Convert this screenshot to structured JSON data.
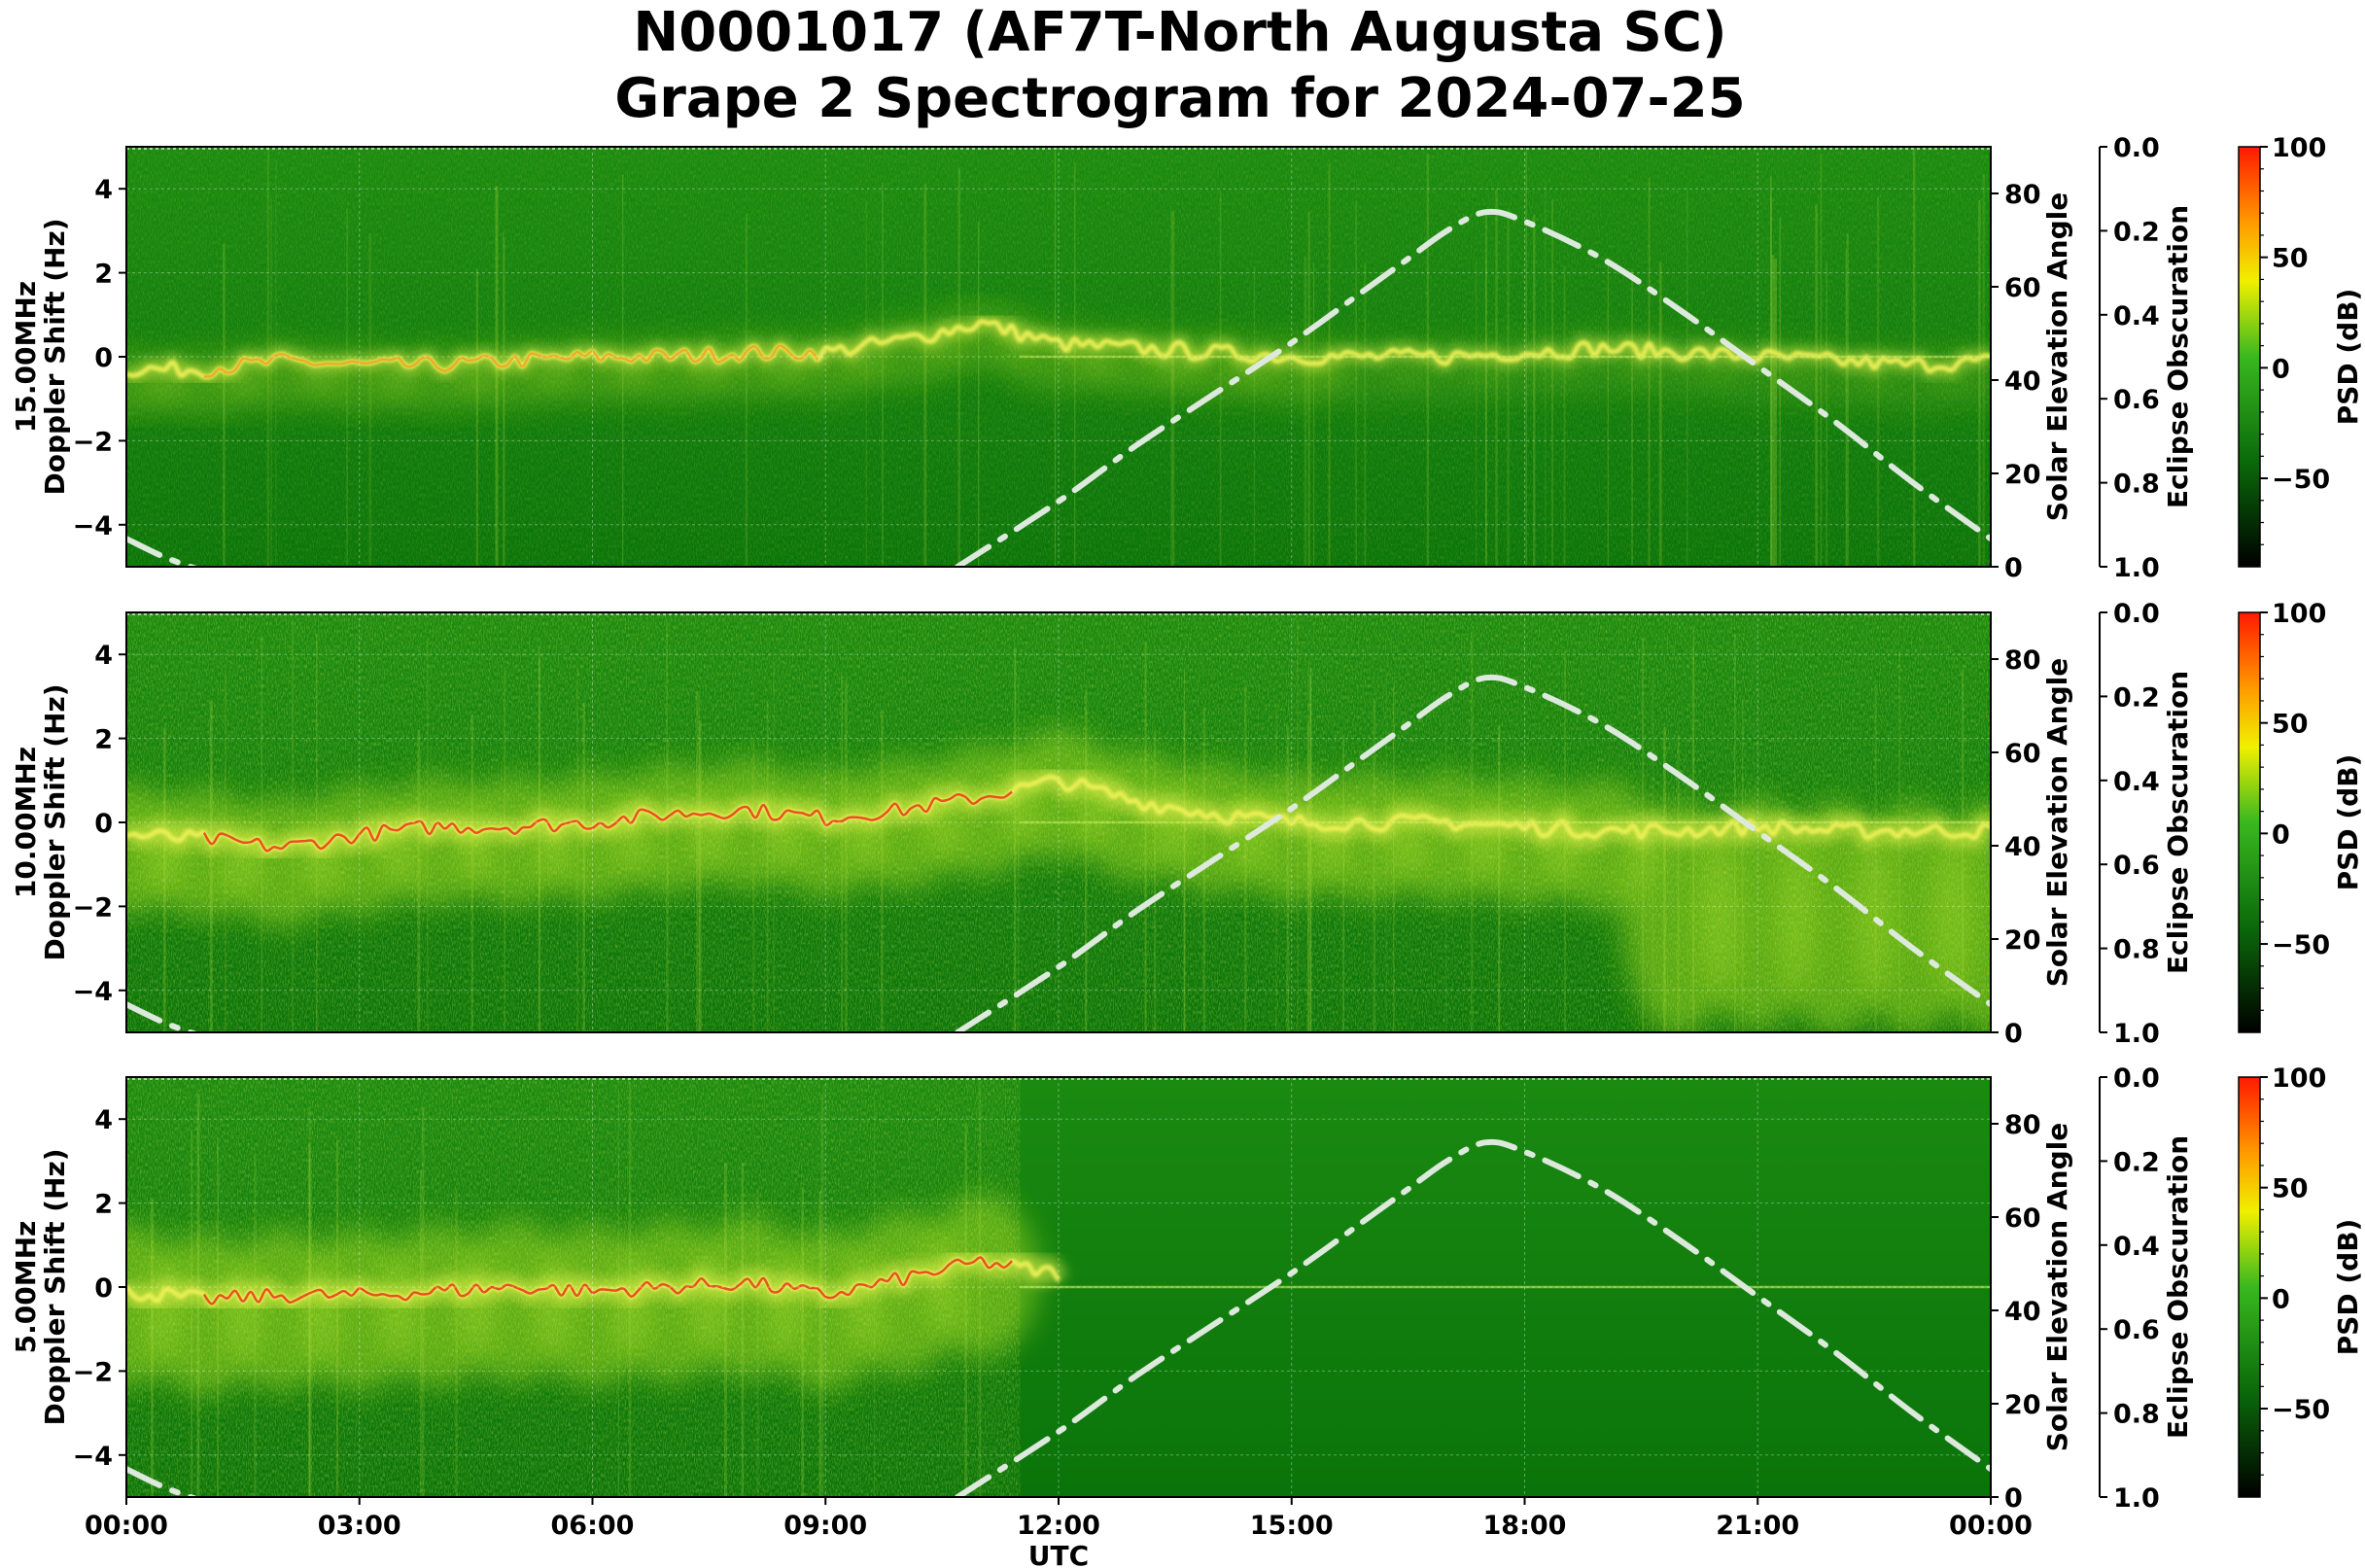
{
  "title": {
    "line1": "N0001017 (AF7T-North Augusta SC)",
    "line2": "Grape 2 Spectrogram for 2024-07-25"
  },
  "colors": {
    "background_green": "#0c7a0c",
    "trace_yellow": "#e6f04a",
    "trace_red": "#e8361a",
    "elevation_curve": "#d8e6d8",
    "colorbar_top": "#ff1a00",
    "colorbar_bottom": "#000000"
  },
  "chart_data": [
    {
      "type": "heatmap",
      "panel_label": "15.00MHz",
      "ylabel": "Doppler Shift (Hz)",
      "ylabel_right": "Solar Elevation Angle",
      "ylabel_eclipse": "Eclipse Obscuration",
      "colorbar_label": "PSD (dB)",
      "xlabel": "",
      "x_ticks": [],
      "y_ticks": [
        "4",
        "2",
        "0",
        "−2",
        "−4"
      ],
      "y_values": [
        4,
        2,
        0,
        -2,
        -4
      ],
      "ylim": [
        -5,
        5
      ],
      "elev_ticks": [
        "80",
        "60",
        "40",
        "20",
        "0"
      ],
      "elev_values": [
        80,
        60,
        40,
        20,
        0
      ],
      "elev_lim": [
        0,
        90
      ],
      "eclipse_ticks": [
        "0.0",
        "0.2",
        "0.4",
        "0.6",
        "0.8",
        "1.0"
      ],
      "eclipse_lim": [
        0,
        1
      ],
      "psd_ticks": [
        "100",
        "50",
        "0",
        "−50"
      ],
      "psd_values": [
        100,
        50,
        0,
        -50
      ],
      "psd_lim": [
        -90,
        100
      ],
      "grid": true,
      "doppler_trace": {
        "x_hours": [
          0,
          1,
          2,
          3,
          4,
          5,
          6,
          7,
          8,
          9,
          10,
          11,
          12,
          13,
          14,
          15,
          16,
          17,
          18,
          19,
          20,
          21,
          22,
          23,
          24
        ],
        "hz": [
          -0.3,
          -0.3,
          -0.1,
          -0.2,
          -0.2,
          -0.1,
          0,
          0,
          0.1,
          0.1,
          0.4,
          0.8,
          0.3,
          0.2,
          0.1,
          0,
          0,
          0,
          0.1,
          0.2,
          0.1,
          0,
          -0.1,
          -0.2,
          -0.1
        ]
      },
      "elevation_curve": {
        "x_hours": [
          0,
          0.5,
          1,
          10.7,
          12,
          13,
          14,
          15,
          16,
          16.5,
          17,
          17.5,
          18,
          19,
          20,
          21,
          22,
          23,
          24
        ],
        "deg": [
          6,
          2,
          -1,
          0,
          14,
          26,
          37,
          48,
          60,
          66,
          72,
          76,
          74,
          66,
          55,
          43,
          31,
          18,
          6
        ]
      }
    },
    {
      "type": "heatmap",
      "panel_label": "10.00MHz",
      "ylabel": "Doppler Shift (Hz)",
      "ylabel_right": "Solar Elevation Angle",
      "ylabel_eclipse": "Eclipse Obscuration",
      "colorbar_label": "PSD (dB)",
      "xlabel": "",
      "x_ticks": [],
      "y_ticks": [
        "4",
        "2",
        "0",
        "−2",
        "−4"
      ],
      "y_values": [
        4,
        2,
        0,
        -2,
        -4
      ],
      "ylim": [
        -5,
        5
      ],
      "elev_ticks": [
        "80",
        "60",
        "40",
        "20",
        "0"
      ],
      "elev_values": [
        80,
        60,
        40,
        20,
        0
      ],
      "elev_lim": [
        0,
        90
      ],
      "eclipse_ticks": [
        "0.0",
        "0.2",
        "0.4",
        "0.6",
        "0.8",
        "1.0"
      ],
      "eclipse_lim": [
        0,
        1
      ],
      "psd_ticks": [
        "100",
        "50",
        "0",
        "−50"
      ],
      "psd_values": [
        100,
        50,
        0,
        -50
      ],
      "psd_lim": [
        -90,
        100
      ],
      "grid": true,
      "doppler_trace": {
        "x_hours": [
          0,
          1,
          2,
          3,
          4,
          5,
          6,
          7,
          8,
          9,
          10,
          11,
          12,
          13,
          14,
          15,
          16,
          17,
          18,
          19,
          20,
          21,
          22,
          23,
          24
        ],
        "hz": [
          -0.3,
          -0.4,
          -0.6,
          -0.3,
          -0.1,
          -0.1,
          0,
          0.2,
          0.3,
          0.1,
          0.3,
          0.6,
          1.0,
          0.5,
          0.2,
          0,
          0,
          0,
          -0.1,
          -0.2,
          -0.2,
          -0.1,
          -0.2,
          -0.2,
          -0.2
        ]
      },
      "elevation_curve": {
        "x_hours": [
          0,
          0.5,
          1,
          10.7,
          12,
          13,
          14,
          15,
          16,
          16.5,
          17,
          17.5,
          18,
          19,
          20,
          21,
          22,
          23,
          24
        ],
        "deg": [
          6,
          2,
          -1,
          0,
          14,
          26,
          37,
          48,
          60,
          66,
          72,
          76,
          74,
          66,
          55,
          43,
          31,
          18,
          6
        ]
      }
    },
    {
      "type": "heatmap",
      "panel_label": "5.00MHz",
      "ylabel": "Doppler Shift (Hz)",
      "ylabel_right": "Solar Elevation Angle",
      "ylabel_eclipse": "Eclipse Obscuration",
      "colorbar_label": "PSD (dB)",
      "xlabel": "UTC",
      "x_ticks": [
        "00:00",
        "03:00",
        "06:00",
        "09:00",
        "12:00",
        "15:00",
        "18:00",
        "21:00",
        "00:00"
      ],
      "y_ticks": [
        "4",
        "2",
        "0",
        "−2",
        "−4"
      ],
      "y_values": [
        4,
        2,
        0,
        -2,
        -4
      ],
      "ylim": [
        -5,
        5
      ],
      "elev_ticks": [
        "80",
        "60",
        "40",
        "20",
        "0"
      ],
      "elev_values": [
        80,
        60,
        40,
        20,
        0
      ],
      "elev_lim": [
        0,
        90
      ],
      "eclipse_ticks": [
        "0.0",
        "0.2",
        "0.4",
        "0.6",
        "0.8",
        "1.0"
      ],
      "eclipse_lim": [
        0,
        1
      ],
      "psd_ticks": [
        "100",
        "50",
        "0",
        "−50"
      ],
      "psd_values": [
        100,
        50,
        0,
        -50
      ],
      "psd_lim": [
        -90,
        100
      ],
      "grid": true,
      "doppler_trace": {
        "x_hours": [
          0,
          1,
          2,
          3,
          4,
          5,
          6,
          7,
          8,
          9,
          10,
          11,
          12
        ],
        "hz": [
          -0.1,
          -0.3,
          -0.2,
          -0.2,
          -0.1,
          0,
          -0.1,
          0,
          0.1,
          -0.2,
          0.2,
          0.6,
          0.3
        ]
      },
      "elevation_curve": {
        "x_hours": [
          0,
          0.5,
          1,
          10.7,
          12,
          13,
          14,
          15,
          16,
          16.5,
          17,
          17.5,
          18,
          19,
          20,
          21,
          22,
          23,
          24
        ],
        "deg": [
          6,
          2,
          -1,
          0,
          14,
          26,
          37,
          48,
          60,
          66,
          72,
          76,
          74,
          66,
          55,
          43,
          31,
          18,
          6
        ]
      }
    }
  ]
}
